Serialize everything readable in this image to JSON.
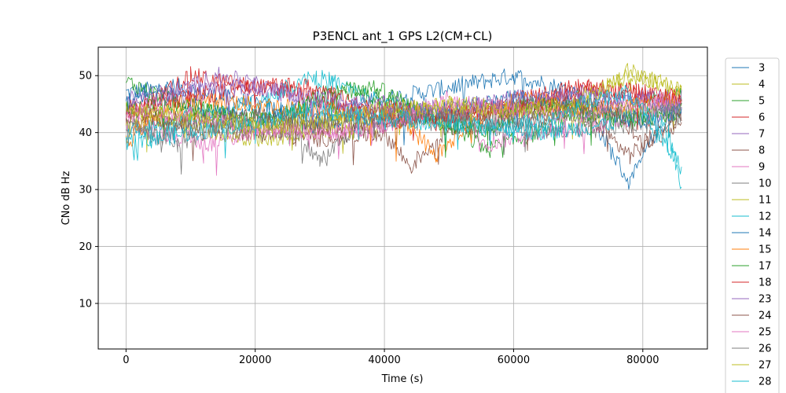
{
  "chart_data": {
    "type": "line",
    "title": "P3ENCL ant_1 GPS L2(CM+CL)",
    "xlabel": "Time (s)",
    "ylabel": "CNo dB Hz",
    "xlim": [
      -4300,
      90000
    ],
    "ylim": [
      2,
      55
    ],
    "x_ticks": [
      0,
      20000,
      40000,
      60000,
      80000
    ],
    "y_ticks": [
      10,
      20,
      30,
      40,
      50
    ],
    "x_tick_labels": [
      "0",
      "20000",
      "40000",
      "60000",
      "80000"
    ],
    "y_tick_labels": [
      "10",
      "20",
      "30",
      "40",
      "50"
    ],
    "grid": true,
    "legend_placement": "outside-right",
    "series": [
      {
        "name": "3",
        "color": "#1f77b4",
        "x": [
          0,
          8000,
          16000,
          24000,
          32000,
          36000,
          60000,
          70000,
          78000,
          82000,
          86000
        ],
        "y": [
          47,
          48,
          46,
          44,
          43,
          45,
          50,
          47,
          31,
          40,
          45
        ]
      },
      {
        "name": "4",
        "color": "#bcbd22",
        "x": [
          0,
          10000,
          20000,
          30000,
          40000,
          50000,
          60000,
          70000,
          78000,
          86000
        ],
        "y": [
          44,
          41,
          39,
          40,
          42,
          43,
          44,
          46,
          50,
          47
        ]
      },
      {
        "name": "5",
        "color": "#2ca02c",
        "x": [
          0,
          6000,
          12000,
          18000,
          24000,
          30000,
          38000,
          46000,
          56000,
          66000,
          76000,
          86000
        ],
        "y": [
          49,
          46,
          44,
          41,
          43,
          46,
          48,
          44,
          37,
          41,
          44,
          47
        ]
      },
      {
        "name": "6",
        "color": "#d62728",
        "x": [
          0,
          6000,
          10000,
          14000,
          20000,
          26000,
          32000,
          40000,
          50000,
          62000,
          70000,
          80000,
          86000
        ],
        "y": [
          43,
          47,
          50,
          49,
          48,
          47,
          45,
          42,
          43,
          46,
          48,
          47,
          45
        ]
      },
      {
        "name": "7",
        "color": "#9467bd",
        "x": [
          0,
          6000,
          10000,
          14000,
          18000,
          24000,
          30000,
          40000,
          56000,
          72000,
          86000
        ],
        "y": [
          46,
          47,
          48,
          50,
          49,
          47,
          45,
          43,
          44,
          46,
          46
        ]
      },
      {
        "name": "8",
        "color": "#8c564b",
        "x": [
          0,
          10000,
          20000,
          30000,
          40000,
          44000,
          50000,
          60000,
          70000,
          78000,
          86000
        ],
        "y": [
          42,
          41,
          40,
          39,
          40,
          34,
          41,
          42,
          44,
          36,
          42
        ]
      },
      {
        "name": "9",
        "color": "#e377c2",
        "x": [
          0,
          6000,
          12000,
          20000,
          28000,
          36000,
          42000,
          50000,
          56000,
          62000,
          70000,
          86000
        ],
        "y": [
          42,
          40,
          38,
          40,
          41,
          40,
          42,
          46,
          38,
          40,
          41,
          44
        ]
      },
      {
        "name": "10",
        "color": "#7f7f7f",
        "x": [
          0,
          4000,
          8000,
          12000,
          20000,
          26000,
          30000,
          36000,
          44000,
          56000,
          70000,
          86000
        ],
        "y": [
          41,
          40,
          38,
          40,
          41,
          40,
          35,
          41,
          42,
          41,
          40,
          43
        ]
      },
      {
        "name": "11",
        "color": "#bcbd22",
        "x": [
          0,
          10000,
          20000,
          30000,
          40000,
          50000,
          60000,
          70000,
          86000
        ],
        "y": [
          42,
          43,
          42,
          41,
          43,
          45,
          44,
          43,
          45
        ]
      },
      {
        "name": "12",
        "color": "#17becf",
        "x": [
          0,
          8000,
          16000,
          22000,
          28000,
          32000,
          40000,
          50000,
          64000,
          72000,
          80000,
          86000
        ],
        "y": [
          40,
          42,
          44,
          46,
          50,
          49,
          45,
          42,
          40,
          41,
          43,
          34
        ]
      },
      {
        "name": "14",
        "color": "#1f77b4",
        "x": [
          0,
          4000,
          8000,
          12000,
          20000,
          30000,
          40000,
          50000,
          60000,
          70000,
          80000,
          86000
        ],
        "y": [
          45,
          48,
          46,
          44,
          43,
          42,
          43,
          44,
          46,
          45,
          42,
          44
        ]
      },
      {
        "name": "15",
        "color": "#ff7f0e",
        "x": [
          0,
          4000,
          10000,
          20000,
          30000,
          40000,
          44000,
          48000,
          56000,
          62000,
          70000,
          80000,
          86000
        ],
        "y": [
          38,
          43,
          46,
          45,
          44,
          43,
          41,
          36,
          44,
          46,
          44,
          45,
          46
        ]
      },
      {
        "name": "17",
        "color": "#2ca02c",
        "x": [
          0,
          8000,
          16000,
          24000,
          32000,
          40000,
          48000,
          56000,
          62000,
          70000,
          78000,
          86000
        ],
        "y": [
          44,
          45,
          43,
          42,
          48,
          46,
          42,
          40,
          45,
          44,
          42,
          44
        ]
      },
      {
        "name": "18",
        "color": "#d62728",
        "x": [
          0,
          8000,
          14000,
          20000,
          28000,
          36000,
          48000,
          60000,
          72000,
          86000
        ],
        "y": [
          44,
          46,
          47,
          48,
          48,
          45,
          43,
          44,
          48,
          46
        ]
      },
      {
        "name": "23",
        "color": "#9467bd",
        "x": [
          0,
          10000,
          20000,
          30000,
          40000,
          50000,
          60000,
          70000,
          80000,
          86000
        ],
        "y": [
          45,
          47,
          48,
          46,
          45,
          44,
          46,
          47,
          46,
          44
        ]
      },
      {
        "name": "24",
        "color": "#8c564b",
        "x": [
          0,
          10000,
          20000,
          30000,
          40000,
          50000,
          60000,
          70000,
          76000,
          80000,
          86000
        ],
        "y": [
          43,
          42,
          43,
          41,
          42,
          43,
          44,
          45,
          44,
          38,
          43
        ]
      },
      {
        "name": "25",
        "color": "#e377c2",
        "x": [
          0,
          10000,
          20000,
          30000,
          40000,
          46000,
          52000,
          60000,
          70000,
          80000,
          86000
        ],
        "y": [
          44,
          43,
          41,
          40,
          41,
          44,
          45,
          44,
          43,
          45,
          46
        ]
      },
      {
        "name": "26",
        "color": "#7f7f7f",
        "x": [
          0,
          4000,
          10000,
          16000,
          22000,
          30000,
          40000,
          50000,
          60000,
          70000,
          86000
        ],
        "y": [
          43,
          39,
          41,
          42,
          43,
          42,
          44,
          43,
          42,
          43,
          44
        ]
      },
      {
        "name": "27",
        "color": "#bcbd22",
        "x": [
          0,
          10000,
          20000,
          30000,
          40000,
          50000,
          60000,
          70000,
          76000,
          78000,
          82000,
          86000
        ],
        "y": [
          44,
          43,
          41,
          42,
          44,
          45,
          44,
          45,
          49,
          51,
          49,
          47
        ]
      },
      {
        "name": "28",
        "color": "#17becf",
        "x": [
          0,
          10000,
          20000,
          28000,
          36000,
          46000,
          56000,
          66000,
          72000,
          78000,
          84000,
          86000
        ],
        "y": [
          38,
          40,
          42,
          44,
          43,
          42,
          41,
          42,
          46,
          47,
          40,
          30
        ]
      }
    ]
  }
}
